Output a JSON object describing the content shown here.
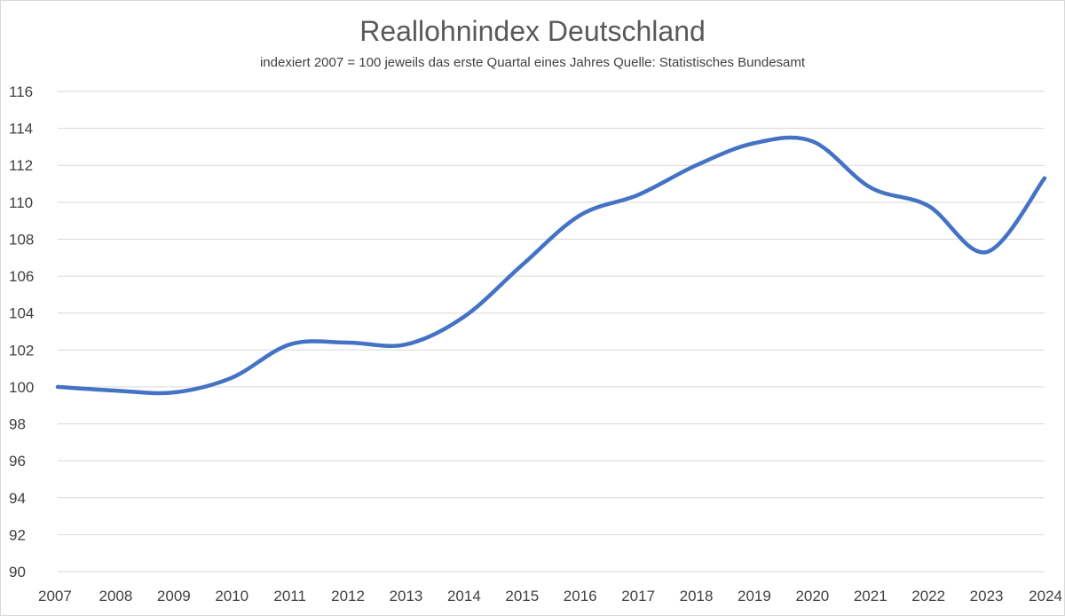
{
  "chart_data": {
    "type": "line",
    "title": "Reallohnindex Deutschland",
    "subtitle": "indexiert 2007 = 100 jeweils das erste Quartal eines Jahres Quelle: Statistisches Bundesamt",
    "xlabel": "",
    "ylabel": "",
    "x": [
      "2007",
      "2008",
      "2009",
      "2010",
      "2011",
      "2012",
      "2013",
      "2014",
      "2015",
      "2016",
      "2017",
      "2018",
      "2019",
      "2020",
      "2021",
      "2022",
      "2023",
      "2024"
    ],
    "y_ticks": [
      "90",
      "92",
      "94",
      "96",
      "98",
      "100",
      "102",
      "104",
      "106",
      "108",
      "110",
      "112",
      "114",
      "116"
    ],
    "ylim": [
      90,
      116
    ],
    "grid": true,
    "legend": "none",
    "series": [
      {
        "color": "#4472c4",
        "values": [
          100.0,
          99.8,
          99.7,
          100.5,
          102.3,
          102.4,
          102.3,
          103.8,
          106.6,
          109.3,
          110.4,
          112.0,
          113.2,
          113.3,
          110.8,
          109.8,
          107.3,
          111.3
        ]
      }
    ]
  }
}
